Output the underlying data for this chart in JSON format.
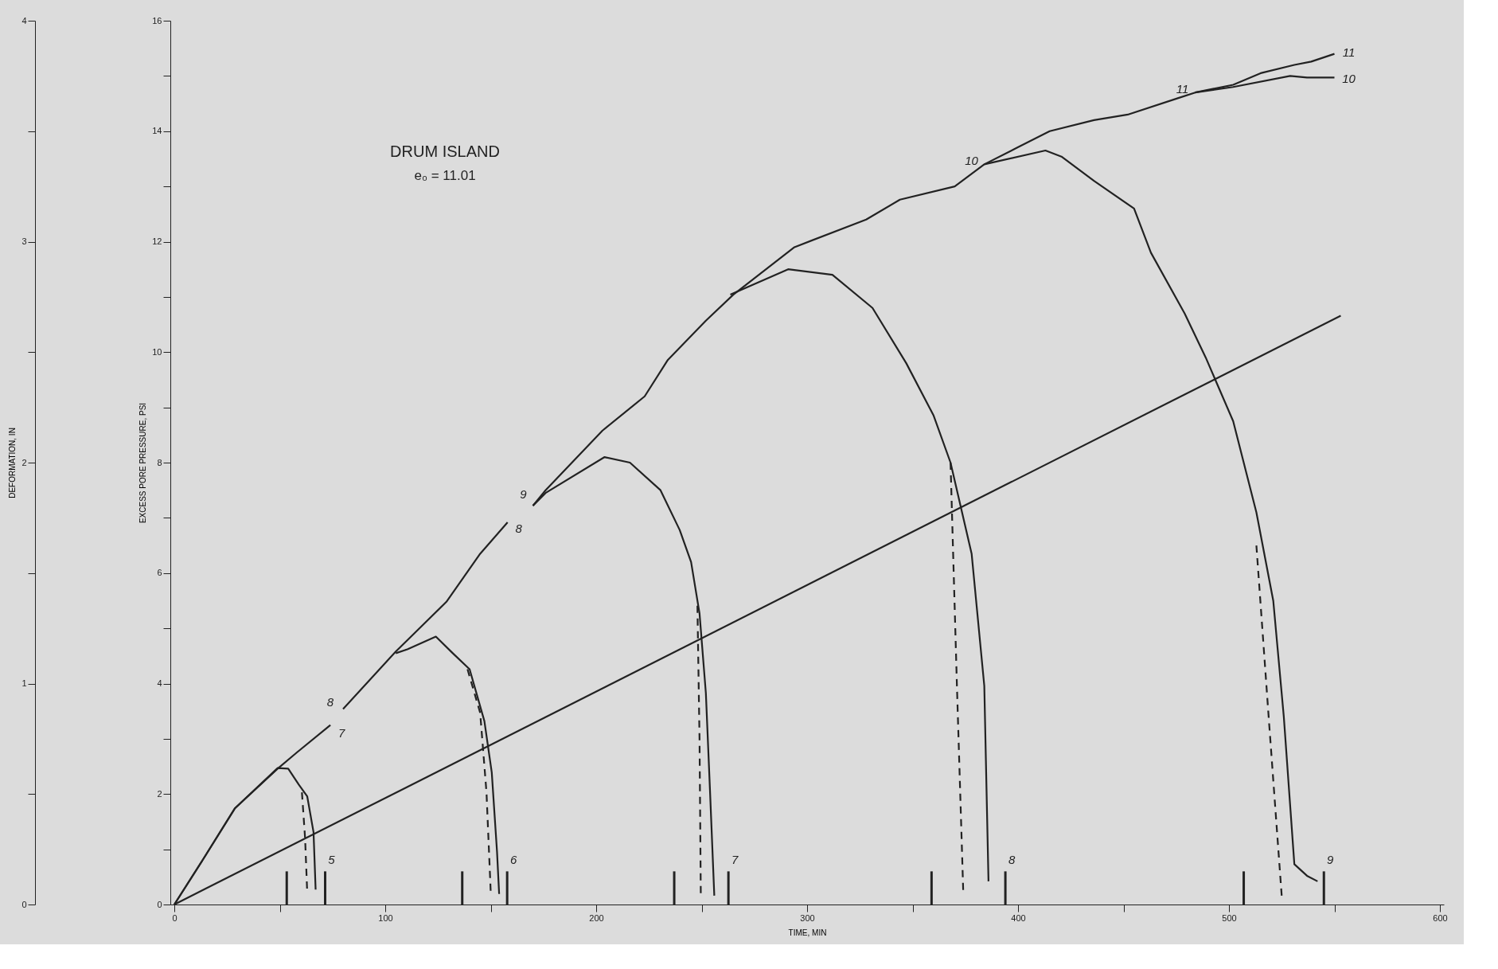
{
  "chart_data": {
    "type": "line",
    "title": "DRUM ISLAND",
    "subtitle": "e₀ = 11.01",
    "xlabel": "TIME, MIN",
    "ylabel": "EXCESS PORE PRESSURE, PSI",
    "y2label": "DEFORMATION, IN",
    "xlim": [
      0,
      600
    ],
    "xticks": [
      0,
      {
        "value": 50,
        "label": null
      },
      100,
      {
        "value": 150,
        "label": null
      },
      200,
      {
        "value": 250,
        "label": null
      },
      300,
      {
        "value": 350,
        "label": null
      },
      400,
      {
        "value": 450,
        "label": null
      },
      500,
      {
        "value": 550,
        "label": null
      },
      600
    ],
    "ylim": [
      0,
      16
    ],
    "yticks": [
      0,
      {
        "value": 1,
        "label": null
      },
      2,
      {
        "value": 3,
        "label": null
      },
      4,
      {
        "value": 5,
        "label": null
      },
      6,
      {
        "value": 7,
        "label": null
      },
      8,
      {
        "value": 9,
        "label": null
      },
      10,
      {
        "value": 11,
        "label": null
      },
      12,
      {
        "value": 13,
        "label": null
      },
      14,
      {
        "value": 15,
        "label": null
      },
      16
    ],
    "y2lim": [
      0,
      4
    ],
    "y2ticks": [
      0,
      {
        "value": 0.5,
        "label": null
      },
      1,
      {
        "value": 1.5,
        "label": null
      },
      2,
      {
        "value": 2.5,
        "label": null
      },
      3,
      {
        "value": 3.5,
        "label": null
      },
      4
    ],
    "legend": false,
    "marker": "none",
    "series": [
      {
        "color": "#222222",
        "x": [
          0,
          14,
          28.7,
          49,
          58,
          74
        ],
        "values": [
          0,
          0.84,
          1.74,
          2.46,
          2.75,
          3.25
        ]
      },
      {
        "color": "#222222",
        "x": [
          0,
          14,
          28.7,
          49,
          54,
          59,
          63,
          66,
          67
        ],
        "values": [
          0,
          0.84,
          1.74,
          2.47,
          2.46,
          2.17,
          1.96,
          1.31,
          0.27
        ]
      },
      {
        "color": "#222222",
        "line_style": "dashed",
        "x": [
          60.5,
          62,
          63
        ],
        "values": [
          2.03,
          1.2,
          0.23
        ]
      },
      {
        "color": "#222222",
        "x": [
          80,
          105,
          129,
          145,
          158
        ],
        "values": [
          3.54,
          4.58,
          5.48,
          6.35,
          6.92
        ]
      },
      {
        "color": "#222222",
        "x": [
          105,
          110.5,
          124,
          132,
          140,
          147,
          150.5,
          153,
          154
        ],
        "values": [
          4.55,
          4.62,
          4.85,
          4.55,
          4.26,
          3.32,
          2.39,
          0.95,
          0.19
        ]
      },
      {
        "color": "#222222",
        "line_style": "dashed",
        "x": [
          139,
          145,
          148,
          150
        ],
        "values": [
          4.26,
          3.47,
          2.03,
          0.23
        ]
      },
      {
        "color": "#222222",
        "x": [
          170,
          176,
          203,
          223,
          234,
          252,
          265,
          294,
          328,
          344,
          370,
          384,
          399.5,
          415,
          436,
          452,
          476,
          484,
          502,
          515,
          531,
          539,
          550
        ],
        "values": [
          7.22,
          7.5,
          8.58,
          9.2,
          9.86,
          10.57,
          11.04,
          11.9,
          12.4,
          12.76,
          13.0,
          13.4,
          13.7,
          14.0,
          14.2,
          14.3,
          14.6,
          14.7,
          14.84,
          15.05,
          15.2,
          15.26,
          15.4
        ]
      },
      {
        "color": "#222222",
        "x": [
          484,
          502,
          529,
          537,
          550
        ],
        "values": [
          14.7,
          14.8,
          15.0,
          14.97,
          14.97
        ]
      },
      {
        "color": "#222222",
        "x": [
          170,
          176,
          204,
          216,
          230.5,
          239.6,
          245,
          249,
          252,
          254,
          256
        ],
        "values": [
          7.22,
          7.45,
          8.1,
          8.0,
          7.5,
          6.78,
          6.2,
          5.27,
          3.83,
          2.03,
          0.16
        ]
      },
      {
        "color": "#222222",
        "line_style": "dashed",
        "x": [
          248,
          249,
          249.6
        ],
        "values": [
          5.41,
          3.0,
          0.19
        ]
      },
      {
        "color": "#222222",
        "x": [
          263.6,
          291,
          312,
          331,
          347,
          360,
          368,
          378,
          384,
          386
        ],
        "values": [
          11.04,
          11.5,
          11.4,
          10.8,
          9.8,
          8.85,
          8.0,
          6.35,
          3.96,
          0.42
        ]
      },
      {
        "color": "#222222",
        "line_style": "dashed",
        "x": [
          368,
          371,
          374
        ],
        "values": [
          8.0,
          4.0,
          0.26
        ]
      },
      {
        "color": "#222222",
        "x": [
          384,
          413,
          420.6,
          436,
          455,
          463,
          479,
          489,
          502,
          513,
          521,
          526,
          531,
          537,
          542
        ],
        "values": [
          13.4,
          13.65,
          13.54,
          13.1,
          12.6,
          11.8,
          10.7,
          9.9,
          8.75,
          7.1,
          5.5,
          3.4,
          0.73,
          0.52,
          0.42
        ]
      },
      {
        "color": "#222222",
        "line_style": "dashed",
        "x": [
          513,
          519,
          525
        ],
        "values": [
          6.5,
          3.3,
          0.16
        ]
      },
      {
        "axis": "y2",
        "color": "#222222",
        "x": [
          0,
          553
        ],
        "values": [
          0,
          2.665
        ]
      },
      {
        "type": "bar",
        "color": "#222222",
        "x": [
          53.3,
          71.5,
          136.5,
          157.8,
          237,
          262.7,
          359,
          394,
          507,
          545
        ],
        "values": [
          0.6,
          0.6,
          0.6,
          0.6,
          0.6,
          0.6,
          0.6,
          0.6,
          0.6,
          0.6
        ]
      }
    ],
    "annotations": [
      {
        "text": "5",
        "x": 71.5,
        "y": 0.6
      },
      {
        "text": "6",
        "x": 157.8,
        "y": 0.6
      },
      {
        "text": "7",
        "x": 262.7,
        "y": 0.6
      },
      {
        "text": "8",
        "x": 394,
        "y": 0.6
      },
      {
        "text": "9",
        "x": 545,
        "y": 0.6
      },
      {
        "text": "7",
        "x": 74,
        "y": 3.25
      },
      {
        "text": "8",
        "x": 80,
        "y": 3.54
      },
      {
        "text": "8",
        "x": 158,
        "y": 6.92
      },
      {
        "text": "9",
        "x": 170,
        "y": 7.22
      },
      {
        "text": "10",
        "x": 384,
        "y": 13.4
      },
      {
        "text": "11",
        "x": 484,
        "y": 14.7
      },
      {
        "text": "11",
        "x": 550,
        "y": 15.4
      },
      {
        "text": "10",
        "x": 550,
        "y": 14.97
      }
    ]
  }
}
